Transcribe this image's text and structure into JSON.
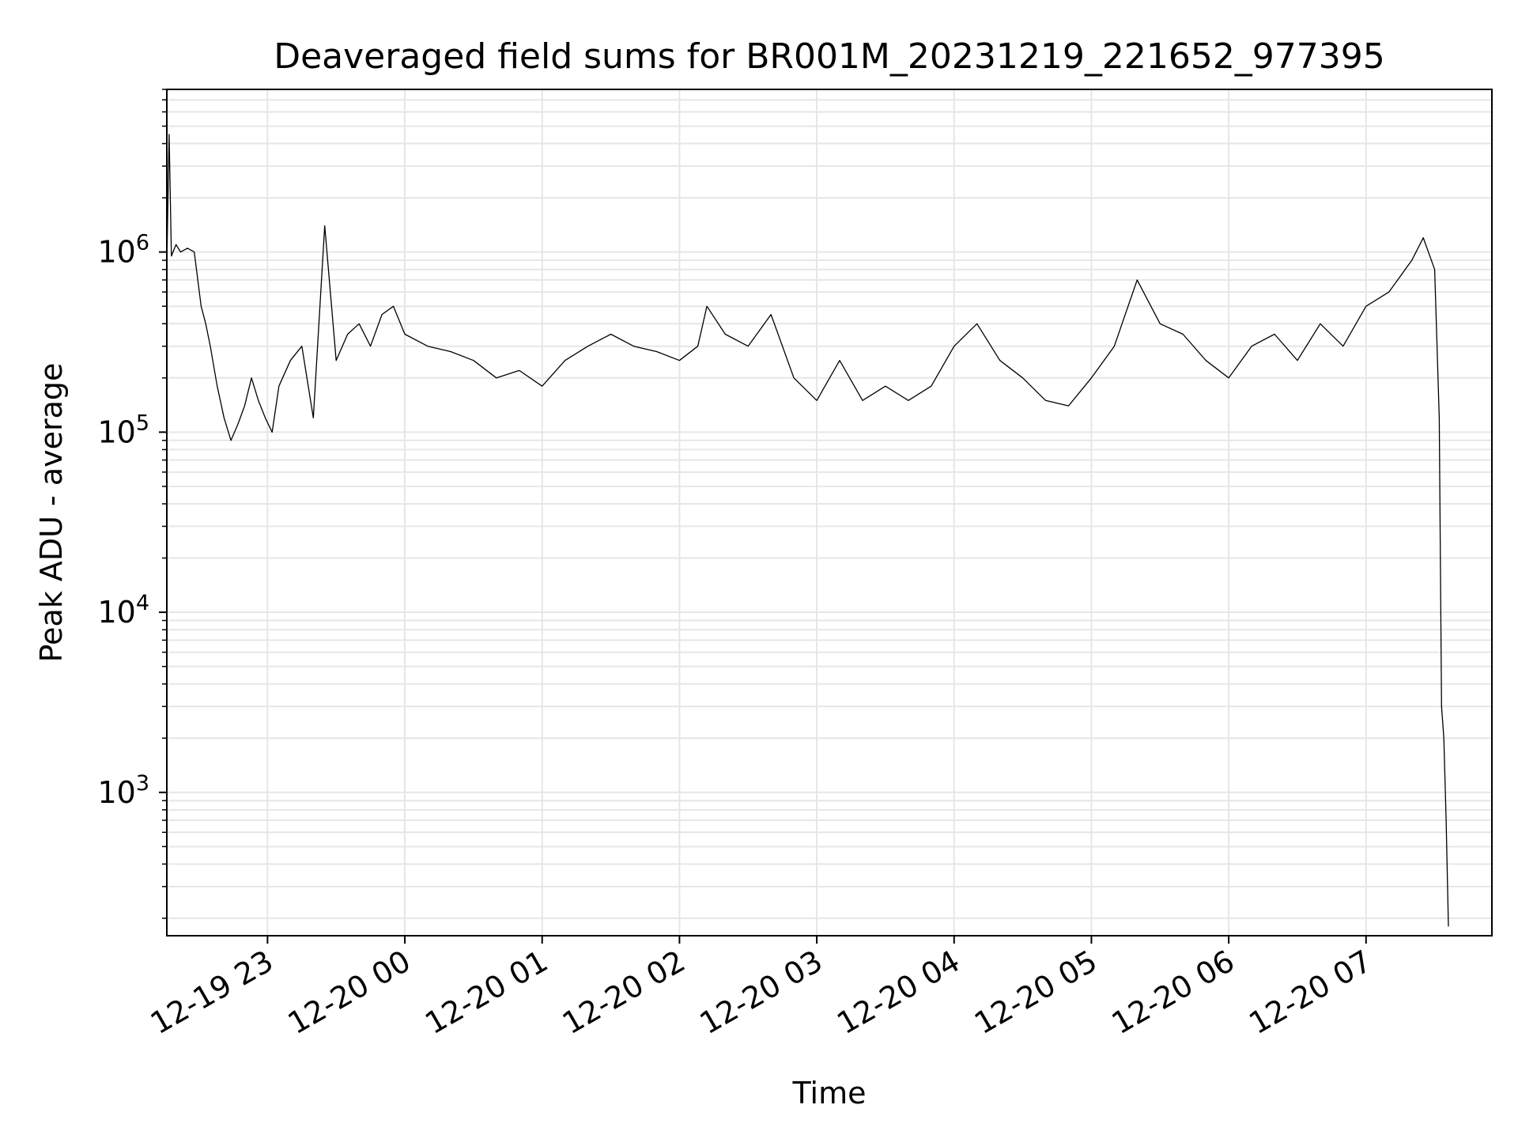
{
  "chart_data": {
    "type": "line",
    "title": "Deaveraged field sums for BR001M_20231219_221652_977395",
    "xlabel": "Time",
    "ylabel": "Peak ADU - average",
    "yscale": "log",
    "xlim": [
      "2023-12-19 22:16",
      "2023-12-20 07:55"
    ],
    "ylim": [
      160,
      8000000
    ],
    "grid": true,
    "x_ticks": [
      {
        "label": "12-19 23",
        "value": "2023-12-19 23:00"
      },
      {
        "label": "12-20 00",
        "value": "2023-12-20 00:00"
      },
      {
        "label": "12-20 01",
        "value": "2023-12-20 01:00"
      },
      {
        "label": "12-20 02",
        "value": "2023-12-20 02:00"
      },
      {
        "label": "12-20 03",
        "value": "2023-12-20 03:00"
      },
      {
        "label": "12-20 04",
        "value": "2023-12-20 04:00"
      },
      {
        "label": "12-20 05",
        "value": "2023-12-20 05:00"
      },
      {
        "label": "12-20 06",
        "value": "2023-12-20 06:00"
      },
      {
        "label": "12-20 07",
        "value": "2023-12-20 07:00"
      }
    ],
    "y_ticks": [
      {
        "base": "10",
        "exp": "3",
        "value": 1000
      },
      {
        "base": "10",
        "exp": "4",
        "value": 10000
      },
      {
        "base": "10",
        "exp": "5",
        "value": 100000
      },
      {
        "base": "10",
        "exp": "6",
        "value": 1000000
      }
    ],
    "series": [
      {
        "color": "#000000",
        "x": [
          "2023-12-19 22:16",
          "2023-12-19 22:17",
          "2023-12-19 22:18",
          "2023-12-19 22:20",
          "2023-12-19 22:22",
          "2023-12-19 22:25",
          "2023-12-19 22:28",
          "2023-12-19 22:31",
          "2023-12-19 22:33",
          "2023-12-19 22:35",
          "2023-12-19 22:38",
          "2023-12-19 22:41",
          "2023-12-19 22:44",
          "2023-12-19 22:47",
          "2023-12-19 22:50",
          "2023-12-19 22:53",
          "2023-12-19 22:56",
          "2023-12-19 22:59",
          "2023-12-19 23:02",
          "2023-12-19 23:05",
          "2023-12-19 23:10",
          "2023-12-19 23:15",
          "2023-12-19 23:20",
          "2023-12-19 23:25",
          "2023-12-19 23:30",
          "2023-12-19 23:35",
          "2023-12-19 23:40",
          "2023-12-19 23:45",
          "2023-12-19 23:50",
          "2023-12-19 23:55",
          "2023-12-20 00:00",
          "2023-12-20 00:10",
          "2023-12-20 00:20",
          "2023-12-20 00:30",
          "2023-12-20 00:40",
          "2023-12-20 00:50",
          "2023-12-20 01:00",
          "2023-12-20 01:10",
          "2023-12-20 01:20",
          "2023-12-20 01:30",
          "2023-12-20 01:40",
          "2023-12-20 01:50",
          "2023-12-20 02:00",
          "2023-12-20 02:08",
          "2023-12-20 02:12",
          "2023-12-20 02:20",
          "2023-12-20 02:30",
          "2023-12-20 02:40",
          "2023-12-20 02:50",
          "2023-12-20 03:00",
          "2023-12-20 03:10",
          "2023-12-20 03:20",
          "2023-12-20 03:30",
          "2023-12-20 03:40",
          "2023-12-20 03:50",
          "2023-12-20 04:00",
          "2023-12-20 04:10",
          "2023-12-20 04:20",
          "2023-12-20 04:30",
          "2023-12-20 04:40",
          "2023-12-20 04:50",
          "2023-12-20 05:00",
          "2023-12-20 05:10",
          "2023-12-20 05:20",
          "2023-12-20 05:30",
          "2023-12-20 05:40",
          "2023-12-20 05:50",
          "2023-12-20 06:00",
          "2023-12-20 06:10",
          "2023-12-20 06:20",
          "2023-12-20 06:30",
          "2023-12-20 06:40",
          "2023-12-20 06:50",
          "2023-12-20 07:00",
          "2023-12-20 07:10",
          "2023-12-20 07:20",
          "2023-12-20 07:25",
          "2023-12-20 07:30",
          "2023-12-20 07:32",
          "2023-12-20 07:33",
          "2023-12-20 07:34",
          "2023-12-20 07:35",
          "2023-12-20 07:36"
        ],
        "y": [
          850000,
          4500000,
          950000,
          1100000,
          1000000,
          1050000,
          1000000,
          500000,
          400000,
          300000,
          180000,
          120000,
          90000,
          110000,
          140000,
          200000,
          150000,
          120000,
          100000,
          180000,
          250000,
          300000,
          120000,
          1400000,
          250000,
          350000,
          400000,
          300000,
          450000,
          500000,
          350000,
          300000,
          280000,
          250000,
          200000,
          220000,
          180000,
          250000,
          300000,
          350000,
          300000,
          280000,
          250000,
          300000,
          500000,
          350000,
          300000,
          450000,
          200000,
          150000,
          250000,
          150000,
          180000,
          150000,
          180000,
          300000,
          400000,
          250000,
          200000,
          150000,
          140000,
          200000,
          300000,
          700000,
          400000,
          350000,
          250000,
          200000,
          300000,
          350000,
          250000,
          400000,
          300000,
          500000,
          600000,
          900000,
          1200000,
          800000,
          120000,
          3000,
          2000,
          700,
          180
        ]
      }
    ]
  }
}
